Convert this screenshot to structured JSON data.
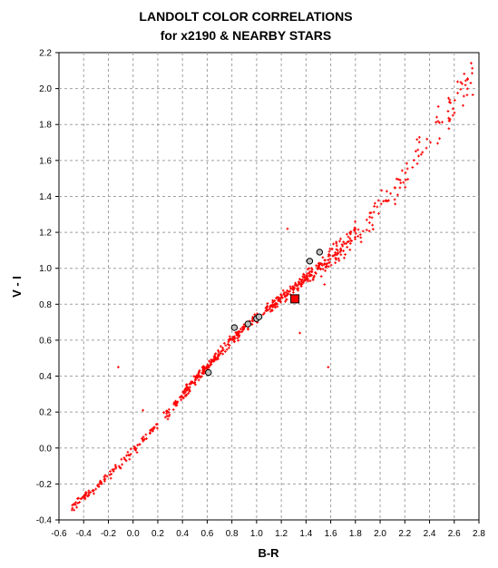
{
  "chart_data": {
    "type": "scatter",
    "title_line1": "LANDOLT COLOR CORRELATIONS",
    "title_line2": "for x2190 & NEARBY STARS",
    "xlabel": "B-R",
    "ylabel": "V - I",
    "xlim": [
      -0.6,
      2.8
    ],
    "ylim": [
      -0.4,
      2.2
    ],
    "x_ticks": [
      "-0.6",
      "-0.4",
      "-0.2",
      "0.0",
      "0.2",
      "0.4",
      "0.6",
      "0.8",
      "1.0",
      "1.2",
      "1.4",
      "1.6",
      "1.8",
      "2.0",
      "2.2",
      "2.4",
      "2.6",
      "2.8"
    ],
    "y_ticks": [
      "-0.4",
      "-0.2",
      "0.0",
      "0.2",
      "0.4",
      "0.6",
      "0.8",
      "1.0",
      "1.2",
      "1.4",
      "1.6",
      "1.8",
      "2.0",
      "2.2"
    ],
    "grid": true,
    "colors": {
      "landolt": "#ff0000",
      "target": "#ff0000",
      "nearby_fill": "#c0c0c0",
      "nearby_edge": "#000000",
      "grid": "#a0a0a0"
    },
    "landolt_trend": {
      "x": [
        -0.5,
        -0.3,
        -0.1,
        0.1,
        0.3,
        0.5,
        0.7,
        0.9,
        1.1,
        1.3,
        1.5,
        1.7,
        1.9,
        2.1,
        2.3,
        2.5,
        2.7
      ],
      "y": [
        -0.33,
        -0.22,
        -0.09,
        0.06,
        0.21,
        0.38,
        0.53,
        0.67,
        0.78,
        0.89,
        1.0,
        1.12,
        1.25,
        1.42,
        1.62,
        1.82,
        2.02
      ]
    },
    "landolt_outliers": {
      "x": [
        -0.12,
        0.08,
        1.25,
        1.58,
        1.55,
        1.35
      ],
      "y": [
        0.45,
        0.21,
        1.22,
        0.45,
        0.91,
        0.64
      ]
    },
    "nearby_stars": {
      "x": [
        0.61,
        0.82,
        0.93,
        1.0,
        1.02,
        1.43,
        1.51
      ],
      "y": [
        0.42,
        0.67,
        0.69,
        0.72,
        0.73,
        1.04,
        1.09
      ]
    },
    "target": {
      "x": 1.31,
      "y": 0.83
    }
  }
}
